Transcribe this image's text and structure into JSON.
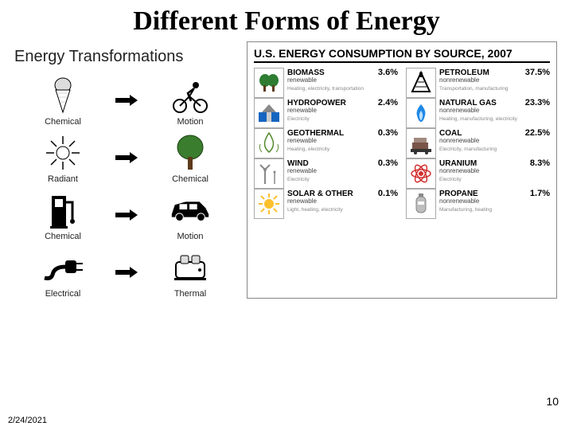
{
  "title": "Different Forms of Energy",
  "page_number": "10",
  "date": "2/24/2021",
  "left": {
    "heading": "Energy Transformations",
    "rows": [
      {
        "from": "Chemical",
        "to": "Motion"
      },
      {
        "from": "Radiant",
        "to": "Chemical"
      },
      {
        "from": "Chemical",
        "to": "Motion"
      },
      {
        "from": "Electrical",
        "to": "Thermal"
      }
    ]
  },
  "right": {
    "heading": "U.S. ENERGY CONSUMPTION BY SOURCE, 2007",
    "columns": {
      "left": [
        {
          "name": "BIOMASS",
          "pct": "3.6%",
          "type": "renewable",
          "uses": "Heating, electricity, transportation",
          "icon": "biomass",
          "color": "#2e7d32"
        },
        {
          "name": "HYDROPOWER",
          "pct": "2.4%",
          "type": "renewable",
          "uses": "Electricity",
          "icon": "hydro",
          "color": "#1565c0"
        },
        {
          "name": "GEOTHERMAL",
          "pct": "0.3%",
          "type": "renewable",
          "uses": "Heating, electricity",
          "icon": "geothermal",
          "color": "#558b2f"
        },
        {
          "name": "WIND",
          "pct": "0.3%",
          "type": "renewable",
          "uses": "Electricity",
          "icon": "wind",
          "color": "#90a4ae"
        },
        {
          "name": "SOLAR & OTHER",
          "pct": "0.1%",
          "type": "renewable",
          "uses": "Light, heating, electricity",
          "icon": "solar",
          "color": "#fbc02d"
        }
      ],
      "right": [
        {
          "name": "PETROLEUM",
          "pct": "37.5%",
          "type": "nonrenewable",
          "uses": "Transportation, manufacturing",
          "icon": "petroleum",
          "color": "#000000"
        },
        {
          "name": "NATURAL GAS",
          "pct": "23.3%",
          "type": "nonrenewable",
          "uses": "Heating, manufacturing, electricity",
          "icon": "gas",
          "color": "#1e88e5"
        },
        {
          "name": "COAL",
          "pct": "22.5%",
          "type": "nonrenewable",
          "uses": "Electricity, manufacturing",
          "icon": "coal",
          "color": "#795548"
        },
        {
          "name": "URANIUM",
          "pct": "8.3%",
          "type": "nonrenewable",
          "uses": "Electricity",
          "icon": "uranium",
          "color": "#d32f2f"
        },
        {
          "name": "PROPANE",
          "pct": "1.7%",
          "type": "nonrenewable",
          "uses": "Manufacturing, heating",
          "icon": "propane",
          "color": "#bdbdbd"
        }
      ]
    }
  }
}
